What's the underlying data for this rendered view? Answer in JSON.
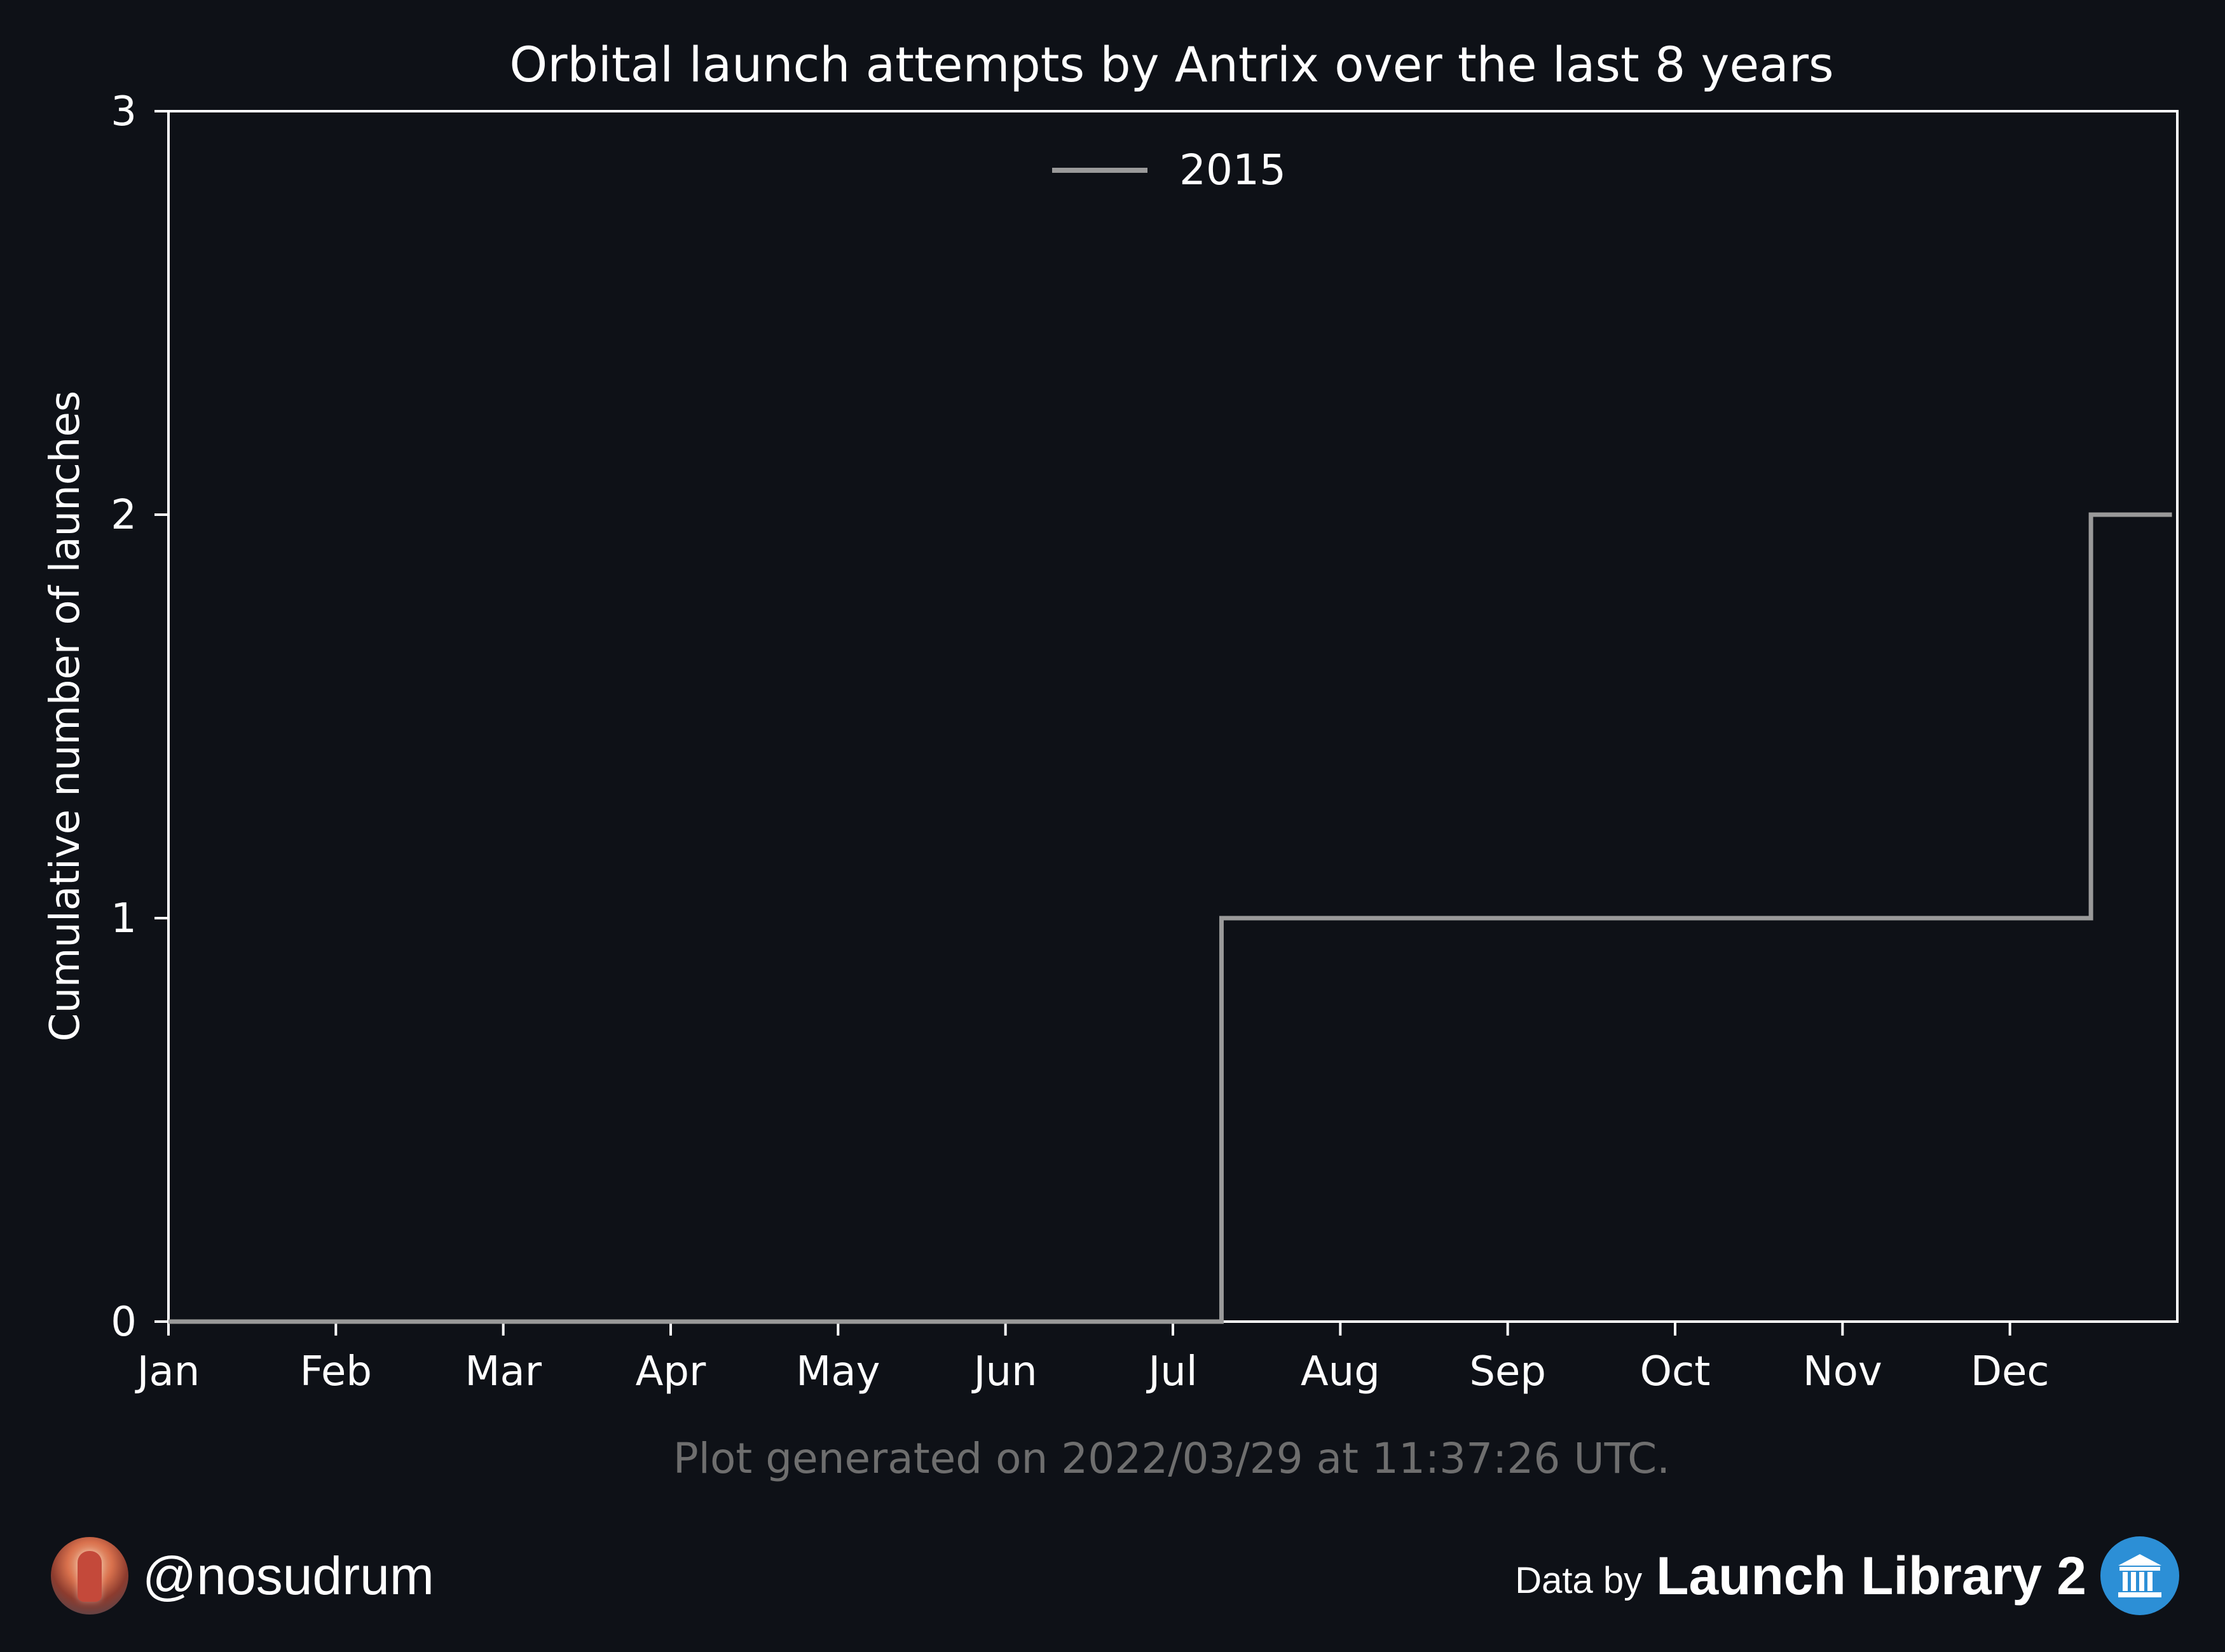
{
  "chart_data": {
    "type": "line",
    "subtype": "step",
    "title": "Orbital launch attempts by Antrix over the last 8 years",
    "xlabel": "",
    "ylabel": "Cumulative number of launches",
    "x_axis": {
      "unit": "month of year",
      "range": [
        1,
        13
      ],
      "ticks": [
        1,
        2,
        3,
        4,
        5,
        6,
        7,
        8,
        9,
        10,
        11,
        12
      ],
      "tick_labels": [
        "Jan",
        "Feb",
        "Mar",
        "Apr",
        "May",
        "Jun",
        "Jul",
        "Aug",
        "Sep",
        "Oct",
        "Nov",
        "Dec"
      ]
    },
    "y_axis": {
      "range": [
        0,
        3
      ],
      "ticks": [
        0,
        1,
        2,
        3
      ],
      "tick_labels": [
        "0",
        "1",
        "2",
        "3"
      ]
    },
    "grid": false,
    "legend": {
      "position": "top-center"
    },
    "series": [
      {
        "name": "2015",
        "color": "#9a9a9a",
        "points": [
          {
            "x": "Jan 1",
            "y": 0
          },
          {
            "x": "Jul 10",
            "y": 1
          },
          {
            "x": "Dec 16",
            "y": 2
          },
          {
            "x": "Dec 31",
            "y": 2
          }
        ]
      }
    ],
    "annotation": "Plot generated on 2022/03/29 at 11:37:26 UTC."
  },
  "footer": {
    "author": "@nosudrum",
    "data_by": "Data by",
    "source": "Launch Library 2",
    "author_avatar_icon": "astronaut-avatar",
    "source_icon": "museum-icon"
  },
  "colors": {
    "background": "#0e1117",
    "foreground": "#ffffff",
    "annotation": "#6e6e6e",
    "accent": "#2c8fd6"
  }
}
